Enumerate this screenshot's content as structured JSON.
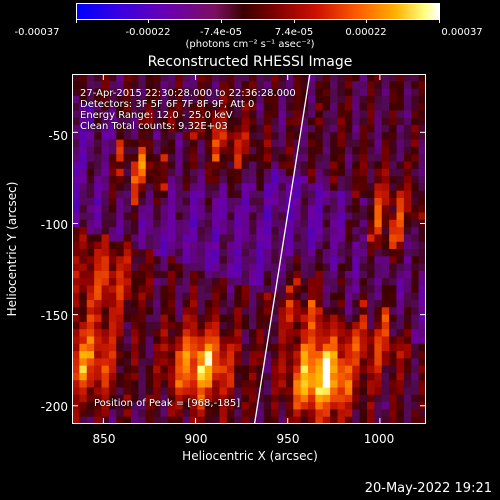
{
  "colorbar": {
    "ticks": [
      "-0.00037",
      "-0.00022",
      "-7.4e-05",
      "7.4e-05",
      "0.00022",
      "0.00037"
    ],
    "unit_label": "(photons cm⁻² s⁻¹ asec⁻²)",
    "range": [
      -0.00037,
      0.00037
    ]
  },
  "chart_data": {
    "type": "heatmap",
    "title": "Reconstructed RHESSI Image",
    "xlabel": "Heliocentric X (arcsec)",
    "ylabel": "Heliocentric Y (arcsec)",
    "xlim": [
      833,
      1025
    ],
    "ylim": [
      -210,
      -18
    ],
    "xticks": [
      "850",
      "900",
      "950",
      "1000"
    ],
    "yticks": [
      "-50",
      "-100",
      "-150",
      "-200"
    ],
    "annotations": [
      "27-Apr-2015 22:30:28.000 to 22:36:28.000",
      "Detectors: 3F 5F 6F 7F 8F 9F, Att 0",
      "Energy Range: 12.0 - 25.0 keV",
      "Clean    Total counts: 9.32E+03"
    ],
    "peak_label": "Position of Peak = [968,-185]",
    "peak": [
      968,
      -185
    ],
    "sources": [
      {
        "x": 968,
        "y": -185,
        "amp": 1.0
      },
      {
        "x": 903,
        "y": -178,
        "amp": 0.85
      },
      {
        "x": 840,
        "y": -175,
        "amp": 0.7
      },
      {
        "x": 870,
        "y": -70,
        "amp": 0.55
      },
      {
        "x": 1005,
        "y": -100,
        "amp": 0.55
      },
      {
        "x": 960,
        "y": -140,
        "amp": 0.45
      },
      {
        "x": 1000,
        "y": -160,
        "amp": 0.45
      },
      {
        "x": 915,
        "y": -60,
        "amp": 0.45
      },
      {
        "x": 850,
        "y": -130,
        "amp": 0.5
      }
    ],
    "limb_line": {
      "x1": 932,
      "y1": -210,
      "x2": 962,
      "y2": -18
    }
  },
  "footer": {
    "datetime": "20-May-2022 19:21"
  }
}
